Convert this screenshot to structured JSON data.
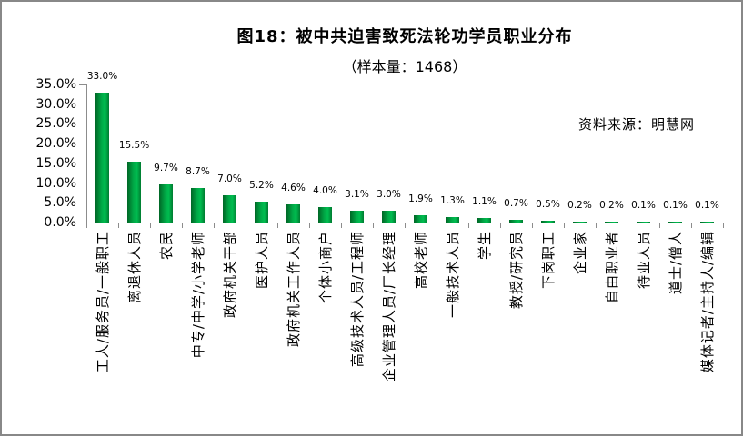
{
  "title": "图18：被中共迫害致死法轮功学员职业分布",
  "subtitle": "（样本量：1468）",
  "source_note": "资料来源：明慧网",
  "colors": {
    "bar_edge_dark": "#006626",
    "bar_mid": "#00a946",
    "bar_bright": "#00bd50",
    "bar_right_edge": "#007b30",
    "axis": "#8c8c8c",
    "frame_border": "#888888",
    "text": "#000000"
  },
  "chart_data": {
    "type": "bar",
    "title": "图18：被中共迫害致死法轮功学员职业分布",
    "subtitle": "（样本量：1468）",
    "sample_size": 1468,
    "source": "资料来源：明慧网",
    "categories": [
      "工人/服务员/一般职工",
      "离退休人员",
      "农民",
      "中专/中学/小学老师",
      "政府机关干部",
      "医护人员",
      "政府机关工作人员",
      "个体小商户",
      "高级技术人员/工程师",
      "企业管理人员/厂长经理",
      "高校老师",
      "一般技术人员",
      "学生",
      "教授/研究员",
      "下岗职工",
      "企业家",
      "自由职业者",
      "待业人员",
      "道士/僧人",
      "媒体记者/主持人/编辑"
    ],
    "values": [
      33.0,
      15.5,
      9.7,
      8.7,
      7.0,
      5.2,
      4.6,
      4.0,
      3.1,
      3.0,
      1.9,
      1.3,
      1.1,
      0.7,
      0.5,
      0.2,
      0.2,
      0.1,
      0.1,
      0.1
    ],
    "value_labels": [
      "33.0%",
      "15.5%",
      "9.7%",
      "8.7%",
      "7.0%",
      "5.2%",
      "4.6%",
      "4.0%",
      "3.1%",
      "3.0%",
      "1.9%",
      "1.3%",
      "1.1%",
      "0.7%",
      "0.5%",
      "0.2%",
      "0.2%",
      "0.1%",
      "0.1%",
      "0.1%"
    ],
    "xlabel": "",
    "ylabel": "",
    "y_axis": {
      "min": 0,
      "max": 35,
      "tick_step": 5,
      "tick_labels": [
        "0.0%",
        "5.0%",
        "10.0%",
        "15.0%",
        "20.0%",
        "25.0%",
        "30.0%",
        "35.0%"
      ]
    },
    "grid": false,
    "legend": false,
    "bar_color": "#00a040"
  }
}
